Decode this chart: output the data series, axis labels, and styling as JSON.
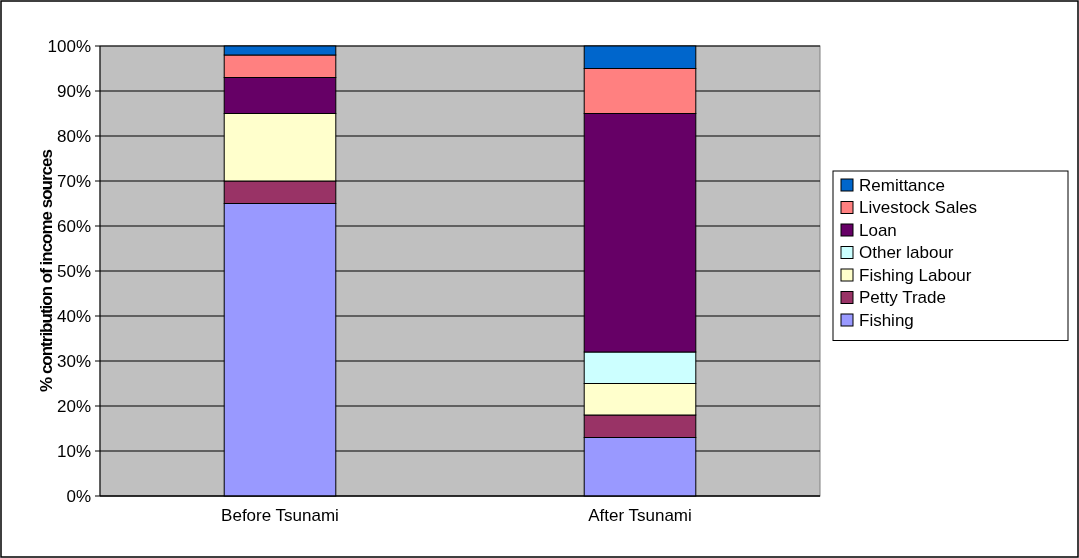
{
  "chart_data": {
    "type": "bar",
    "stacked": true,
    "ylabel": "% contribution of income sources",
    "categories": [
      "Before Tsunami",
      "After Tsunami"
    ],
    "series": [
      {
        "name": "Fishing",
        "color": "#9999ff",
        "values": [
          65,
          13
        ]
      },
      {
        "name": "Petty Trade",
        "color": "#993366",
        "values": [
          5,
          5
        ]
      },
      {
        "name": "Fishing Labour",
        "color": "#ffffcc",
        "values": [
          15,
          7
        ]
      },
      {
        "name": "Other labour",
        "color": "#ccffff",
        "values": [
          0,
          7
        ]
      },
      {
        "name": "Loan",
        "color": "#660066",
        "values": [
          8,
          53
        ]
      },
      {
        "name": "Livestock Sales",
        "color": "#ff8080",
        "values": [
          5,
          10
        ]
      },
      {
        "name": "Remittance",
        "color": "#0066cc",
        "values": [
          2,
          5
        ]
      }
    ],
    "ylim": [
      0,
      100
    ],
    "yticks": [
      {
        "value": 0,
        "label": "0%"
      },
      {
        "value": 10,
        "label": "10%"
      },
      {
        "value": 20,
        "label": "20%"
      },
      {
        "value": 30,
        "label": "30%"
      },
      {
        "value": 40,
        "label": "40%"
      },
      {
        "value": 50,
        "label": "50%"
      },
      {
        "value": 60,
        "label": "60%"
      },
      {
        "value": 70,
        "label": "70%"
      },
      {
        "value": 80,
        "label": "80%"
      },
      {
        "value": 90,
        "label": "90%"
      },
      {
        "value": 100,
        "label": "100%"
      }
    ],
    "grid": "y",
    "legend": "right"
  }
}
